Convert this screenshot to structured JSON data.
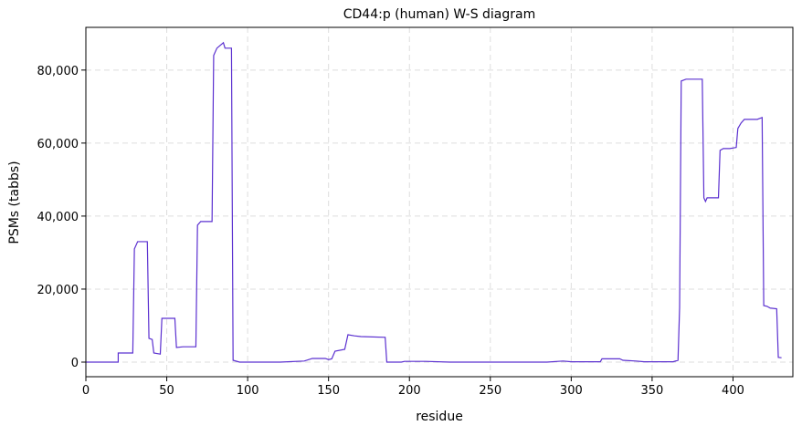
{
  "chart_data": {
    "type": "line",
    "title": "CD44:p (human) W-S diagram",
    "xlabel": "residue",
    "ylabel": "PSMs (tabbs)",
    "x": [
      0,
      20,
      20,
      29,
      30,
      32,
      38,
      39,
      41,
      42,
      46,
      47,
      55,
      56,
      60,
      68,
      69,
      71,
      78,
      79,
      81,
      85,
      86,
      90,
      91,
      95,
      120,
      135,
      140,
      148,
      150,
      152,
      154,
      160,
      162,
      166,
      170,
      185,
      186,
      195,
      197,
      210,
      225,
      260,
      285,
      295,
      300,
      318,
      319,
      330,
      332,
      340,
      345,
      363,
      366,
      367,
      368,
      371,
      381,
      382,
      383,
      384,
      391,
      392,
      394,
      398,
      402,
      403,
      405,
      407,
      415,
      418,
      419,
      421,
      423,
      427,
      428,
      430
    ],
    "series": [
      {
        "name": "PSMs",
        "color": "#5b30d0",
        "values": [
          0,
          0,
          2500,
          2500,
          31000,
          33000,
          33000,
          6500,
          6200,
          2500,
          2200,
          12000,
          12000,
          4000,
          4200,
          4200,
          37500,
          38500,
          38500,
          84000,
          86000,
          87500,
          86000,
          86000,
          500,
          0,
          0,
          300,
          1000,
          1000,
          700,
          900,
          3000,
          3500,
          7500,
          7200,
          7000,
          6800,
          0,
          0,
          200,
          200,
          0,
          0,
          0,
          300,
          100,
          100,
          900,
          900,
          500,
          300,
          100,
          100,
          500,
          15000,
          77000,
          77500,
          77500,
          45000,
          44000,
          45000,
          45000,
          58000,
          58500,
          58500,
          58800,
          64000,
          65500,
          66500,
          66500,
          67000,
          15500,
          15300,
          14800,
          14600,
          1300,
          1200
        ]
      }
    ],
    "xlim": [
      0,
      437
    ],
    "ylim": [
      -4000,
      91700
    ],
    "xticks": [
      0,
      50,
      100,
      150,
      200,
      250,
      300,
      350,
      400
    ],
    "yticks": [
      0,
      {
        "value": 20000,
        "label": "20,000"
      },
      {
        "value": 40000,
        "label": "40,000"
      },
      {
        "value": 60000,
        "label": "60,000"
      },
      {
        "value": 80000,
        "label": "80,000"
      }
    ],
    "grid": true
  }
}
